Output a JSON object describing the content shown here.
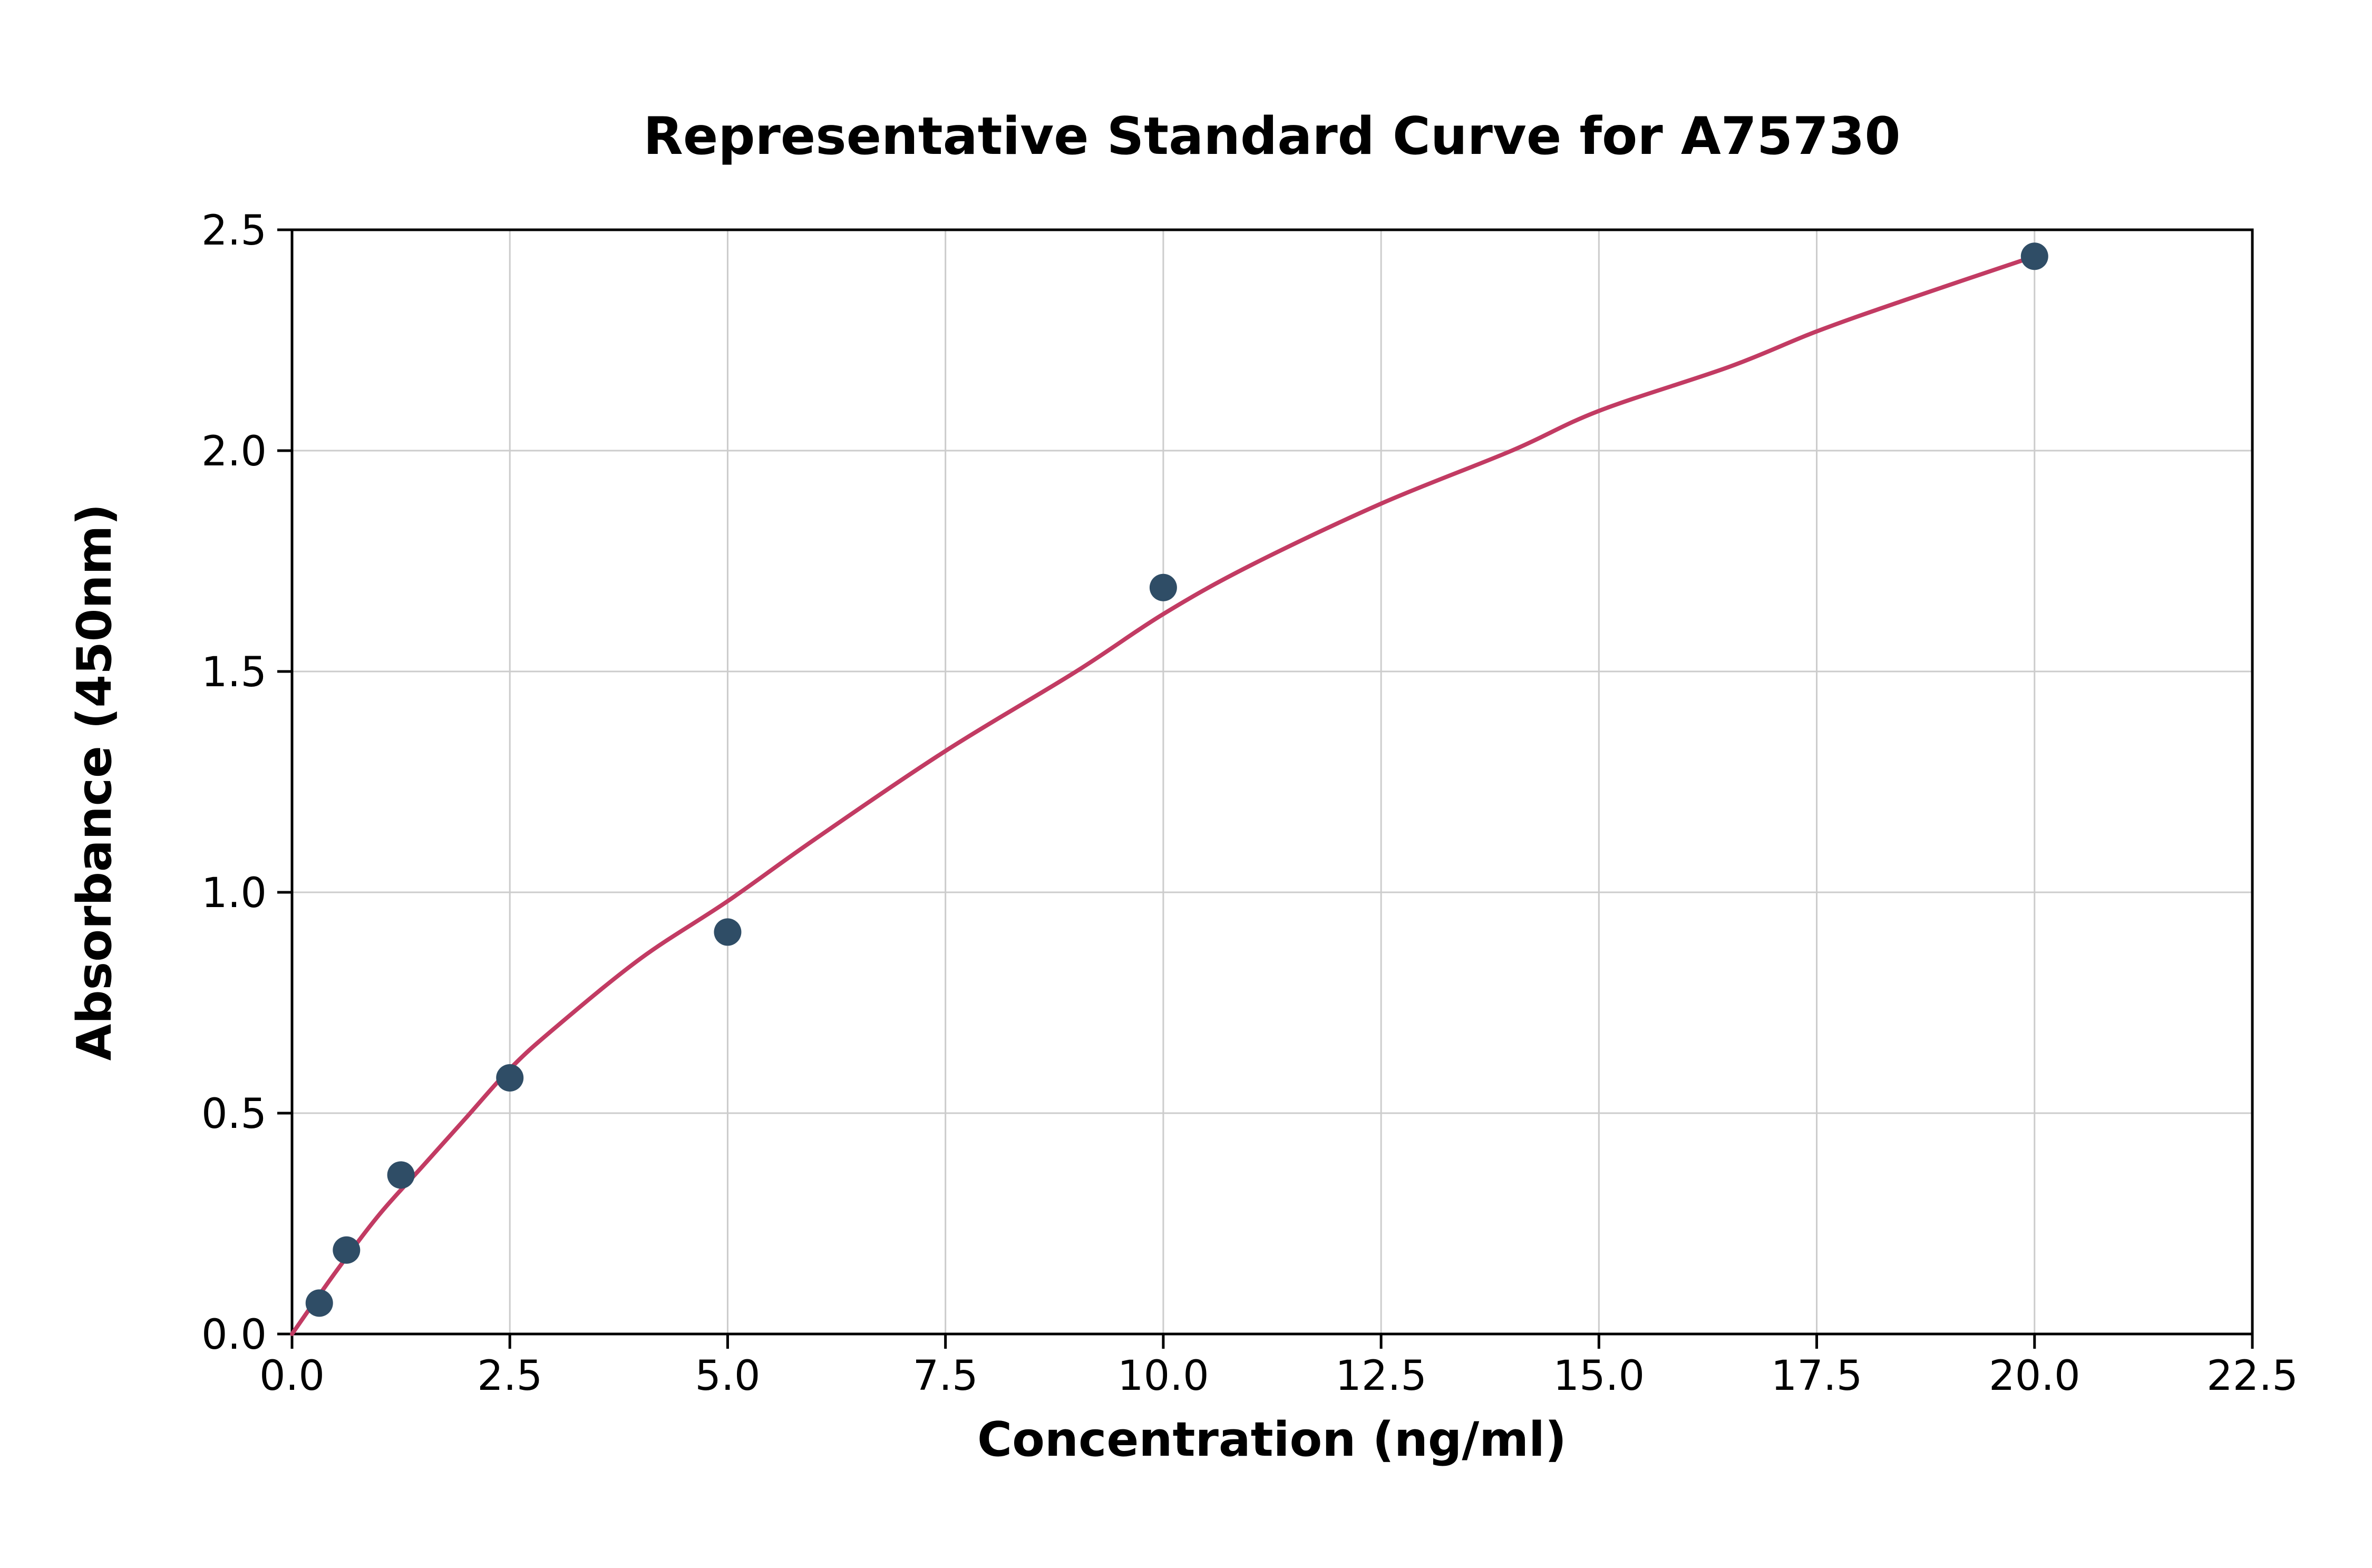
{
  "chart_data": {
    "type": "scatter",
    "title": "Representative Standard Curve for A75730",
    "xlabel": "Concentration (ng/ml)",
    "ylabel": "Absorbance (450nm)",
    "xlim": [
      0,
      22.5
    ],
    "ylim": [
      0,
      2.5
    ],
    "grid": true,
    "legend": "none",
    "xticks": {
      "values": [
        0,
        2.5,
        5,
        7.5,
        10,
        12.5,
        15,
        17.5,
        20,
        22.5
      ],
      "labels": [
        "0.0",
        "2.5",
        "5.0",
        "7.5",
        "10.0",
        "12.5",
        "15.0",
        "17.5",
        "20.0",
        "22.5"
      ]
    },
    "yticks": {
      "values": [
        0,
        0.5,
        1.0,
        1.5,
        2.0,
        2.5
      ],
      "labels": [
        "0.0",
        "0.5",
        "1.0",
        "1.5",
        "2.0",
        "2.5"
      ]
    },
    "points": [
      [
        0.313,
        0.07
      ],
      [
        0.625,
        0.19
      ],
      [
        1.25,
        0.36
      ],
      [
        2.5,
        0.58
      ],
      [
        5,
        0.91
      ],
      [
        10,
        1.69
      ],
      [
        20,
        2.44
      ]
    ],
    "fit_curve": {
      "name": "standard-curve-fit",
      "points": [
        [
          0,
          0.0
        ],
        [
          0.5,
          0.14
        ],
        [
          1,
          0.27
        ],
        [
          1.5,
          0.38
        ],
        [
          2,
          0.49
        ],
        [
          2.5,
          0.6
        ],
        [
          3,
          0.69
        ],
        [
          4,
          0.85
        ],
        [
          5,
          0.98
        ],
        [
          6,
          1.12
        ],
        [
          7.5,
          1.32
        ],
        [
          9,
          1.5
        ],
        [
          10,
          1.63
        ],
        [
          11,
          1.74
        ],
        [
          12.5,
          1.88
        ],
        [
          14,
          2.0
        ],
        [
          15,
          2.09
        ],
        [
          16.5,
          2.19
        ],
        [
          17.5,
          2.27
        ],
        [
          18.5,
          2.34
        ],
        [
          20,
          2.44
        ]
      ]
    },
    "colors": {
      "curve": "#c23b63",
      "points": "#2f4d66",
      "grid": "#cccccc",
      "axis": "#000000",
      "background": "#ffffff"
    }
  }
}
